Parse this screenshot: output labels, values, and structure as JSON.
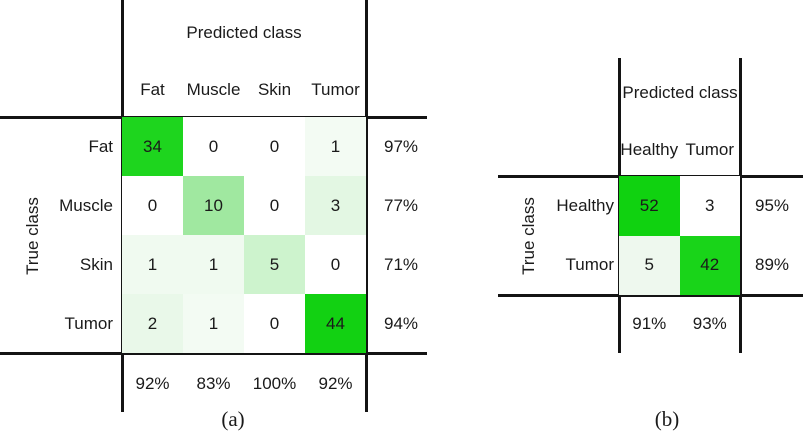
{
  "colors": {
    "background": "#ffffff",
    "grid_line": "#141414",
    "text": "#1a1a1a",
    "diagonal_green": "#16d316"
  },
  "chart_data": [
    {
      "type": "heatmap",
      "name": "confusion-matrix-a",
      "caption": "(a)",
      "pred_label": "Predicted class",
      "true_label": "True class",
      "categories": [
        "Fat",
        "Muscle",
        "Skin",
        "Tumor"
      ],
      "matrix": [
        [
          34,
          0,
          0,
          1
        ],
        [
          0,
          10,
          0,
          3
        ],
        [
          1,
          1,
          5,
          0
        ],
        [
          2,
          1,
          0,
          44
        ]
      ],
      "cell_colors": [
        [
          "#1ed51e",
          "#ffffff",
          "#ffffff",
          "#f3fbf3"
        ],
        [
          "#ffffff",
          "#a0e8a0",
          "#ffffff",
          "#e3f7e3"
        ],
        [
          "#f0faf0",
          "#f0faf0",
          "#cdf3cd",
          "#ffffff"
        ],
        [
          "#e9f8e9",
          "#f3fbf3",
          "#ffffff",
          "#12d112"
        ]
      ],
      "row_percent": [
        "97%",
        "77%",
        "71%",
        "94%"
      ],
      "col_percent": [
        "92%",
        "83%",
        "100%",
        "92%"
      ]
    },
    {
      "type": "heatmap",
      "name": "confusion-matrix-b",
      "caption": "(b)",
      "pred_label": "Predicted class",
      "true_label": "True class",
      "categories": [
        "Healthy",
        "Tumor"
      ],
      "matrix": [
        [
          52,
          3
        ],
        [
          5,
          42
        ]
      ],
      "cell_colors": [
        [
          "#10d210",
          "#ffffff"
        ],
        [
          "#eef8ee",
          "#19d419"
        ]
      ],
      "row_percent": [
        "95%",
        "89%"
      ],
      "col_percent": [
        "91%",
        "93%"
      ]
    }
  ]
}
